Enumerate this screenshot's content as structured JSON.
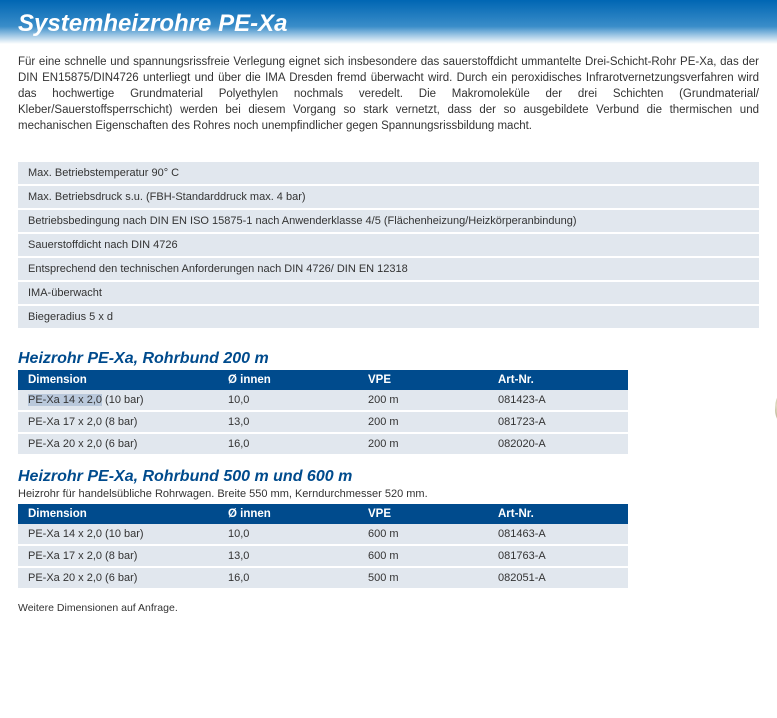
{
  "page": {
    "title": "Systemheizrohre PE-Xa",
    "intro": "Für eine schnelle und spannungsrissfreie Verlegung eignet sich insbesondere das sauerstoffdicht ummantelte Drei-Schicht-Rohr PE-Xa, das der DIN EN15875/DIN4726 unterliegt und über die IMA Dresden fremd überwacht wird. Durch ein peroxidisches Infrarotvernetzungsverfahren wird das hochwertige Grundmaterial Polyethylen nochmals veredelt. Die Makromoleküle der drei Schichten (Grundmaterial/ Kleber/Sauerstoffsperrschicht) werden bei diesem Vorgang so stark vernetzt, dass der so ausgebildete Verbund die thermischen und mechanischen Eigenschaften des Rohres noch unempfindlicher gegen Spannungsrissbildung macht.",
    "footnote": "Weitere Dimensionen auf Anfrage."
  },
  "colors": {
    "title_grad_top": "#0066b3",
    "title_grad_mid": "#3a8dc9",
    "header_bg": "#004b8d",
    "row_bg": "#e1e7ee",
    "highlight_bg": "#b9c8db",
    "section_title": "#004b8d",
    "text": "#333333",
    "header_text": "#ffffff"
  },
  "specs": [
    "Max. Betriebstemperatur  90° C",
    "Max. Betriebsdruck s.u. (FBH-Standarddruck max. 4 bar)",
    "Betriebsbedingung nach DIN EN ISO 15875-1 nach Anwenderklasse 4/5 (Flächenheizung/Heizkörperanbindung)",
    "Sauerstoffdicht nach DIN 4726",
    "Entsprechend den technischen Anforderungen nach DIN 4726/ DIN EN 12318",
    "IMA-überwacht",
    "Biegeradius 5 x d"
  ],
  "columns": [
    "Dimension",
    "Ø innen",
    "VPE",
    "Art-Nr."
  ],
  "sections": [
    {
      "title": "Heizrohr PE-Xa, Rohrbund 200 m",
      "subtitle": "",
      "image": "coil",
      "rows": [
        {
          "dim": "PE-Xa 14 x 2,0 (10 bar)",
          "inner": "10,0",
          "vpe": "200 m",
          "art": "081423-A",
          "highlight": true
        },
        {
          "dim": "PE-Xa 17 x 2,0 (8 bar)",
          "inner": "13,0",
          "vpe": "200 m",
          "art": "081723-A",
          "highlight": false
        },
        {
          "dim": "PE-Xa 20 x 2,0 (6 bar)",
          "inner": "16,0",
          "vpe": "200 m",
          "art": "082020-A",
          "highlight": false
        }
      ]
    },
    {
      "title": "Heizrohr PE-Xa, Rohrbund 500 m und 600 m",
      "subtitle": "Heizrohr für handelsübliche Rohrwagen. Breite 550 mm, Kerndurchmesser 520 mm.",
      "image": "box",
      "rows": [
        {
          "dim": "PE-Xa 14 x 2,0 (10 bar)",
          "inner": "10,0",
          "vpe": "600 m",
          "art": "081463-A",
          "highlight": false
        },
        {
          "dim": "PE-Xa 17 x 2,0 (8 bar)",
          "inner": "13,0",
          "vpe": "600 m",
          "art": "081763-A",
          "highlight": false
        },
        {
          "dim": "PE-Xa 20 x 2,0 (6 bar)",
          "inner": "16,0",
          "vpe": "500 m",
          "art": "082051-A",
          "highlight": false
        }
      ]
    }
  ]
}
